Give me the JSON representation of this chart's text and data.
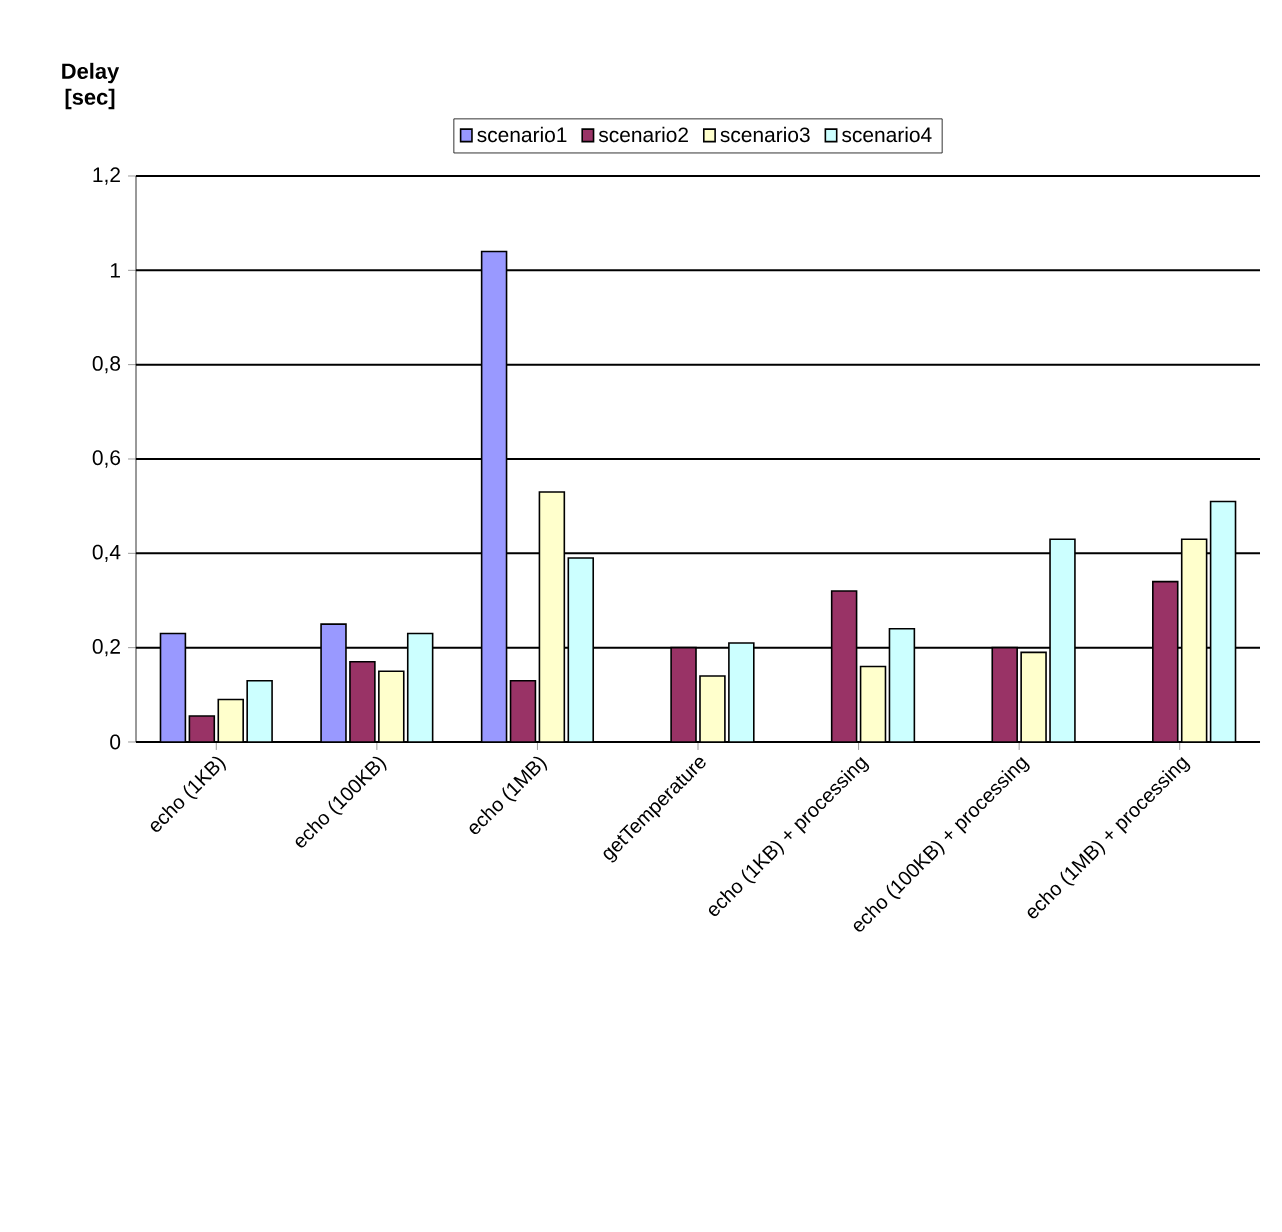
{
  "chart_data": {
    "type": "bar",
    "ylabel": "Delay [sec]",
    "categories": [
      "echo (1KB)",
      "echo (100KB)",
      "echo (1MB)",
      "getTemperature",
      "echo (1KB) + processing",
      "echo (100KB) + processing",
      "echo (1MB) + processing"
    ],
    "series": [
      {
        "name": "scenario1",
        "color": "#9999ff",
        "values": [
          0.23,
          0.25,
          1.04,
          null,
          null,
          null,
          null
        ]
      },
      {
        "name": "scenario2",
        "color": "#993366",
        "values": [
          0.055,
          0.17,
          0.13,
          0.2,
          0.32,
          0.2,
          0.34
        ]
      },
      {
        "name": "scenario3",
        "color": "#ffffcc",
        "values": [
          0.09,
          0.15,
          0.53,
          0.14,
          0.16,
          0.19,
          0.43
        ]
      },
      {
        "name": "scenario4",
        "color": "#ccffff",
        "values": [
          0.13,
          0.23,
          0.39,
          0.21,
          0.24,
          0.43,
          0.51
        ]
      }
    ],
    "ylim": [
      0,
      1.2
    ],
    "yticks": [
      {
        "value": 0,
        "label": "0"
      },
      {
        "value": 0.2,
        "label": "0,2"
      },
      {
        "value": 0.4,
        "label": "0,4"
      },
      {
        "value": 0.6,
        "label": "0,6"
      },
      {
        "value": 0.8,
        "label": "0,8"
      },
      {
        "value": 1,
        "label": "1"
      },
      {
        "value": 1.2,
        "label": "1,2"
      }
    ],
    "grid": "y",
    "legend": "top"
  }
}
